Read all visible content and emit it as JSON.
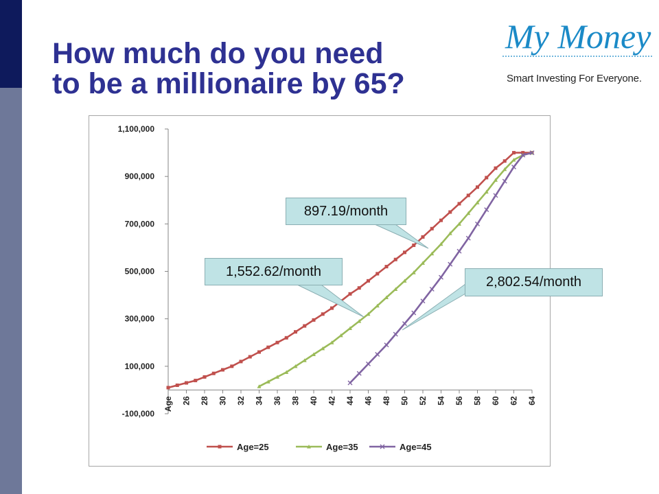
{
  "slide": {
    "title_line1": "How much do you need",
    "title_line2": "to be a millionaire by 65?",
    "logo_text": "My Money",
    "logo_tagline": "Smart Investing For Everyone."
  },
  "colors": {
    "title": "#2e3192",
    "sidebar_dark": "#0e1a5c",
    "sidebar_light": "#6e7899",
    "series_25": "#c0504d",
    "series_35": "#9bbb59",
    "series_45": "#8064a2",
    "callout_fill": "#bfe3e5"
  },
  "chart_data": {
    "type": "line",
    "title": "",
    "xlabel": "",
    "ylabel": "",
    "ylim": [
      -100000,
      1100000
    ],
    "y_ticks": [
      1100000,
      900000,
      700000,
      500000,
      300000,
      100000,
      -100000
    ],
    "y_tick_labels": [
      "1,100,000",
      "900,000",
      "700,000",
      "500,000",
      "300,000",
      "100,000",
      "-100,000"
    ],
    "x_tick_labels": [
      "Age",
      "26",
      "28",
      "30",
      "32",
      "34",
      "36",
      "38",
      "40",
      "42",
      "44",
      "46",
      "48",
      "50",
      "52",
      "54",
      "56",
      "58",
      "60",
      "62",
      "64"
    ],
    "x_range": [
      24,
      64
    ],
    "gridlines": false,
    "legend_position": "bottom",
    "series": [
      {
        "name": "Age=25",
        "marker": "square",
        "x": [
          24,
          25,
          26,
          27,
          28,
          29,
          30,
          31,
          32,
          33,
          34,
          35,
          36,
          37,
          38,
          39,
          40,
          41,
          42,
          43,
          44,
          45,
          46,
          47,
          48,
          49,
          50,
          51,
          52,
          53,
          54,
          55,
          56,
          57,
          58,
          59,
          60,
          61,
          62,
          63,
          64
        ],
        "values": [
          10000,
          20000,
          30000,
          40000,
          55000,
          70000,
          85000,
          100000,
          120000,
          140000,
          160000,
          180000,
          200000,
          220000,
          245000,
          270000,
          295000,
          320000,
          345000,
          375000,
          405000,
          430000,
          460000,
          490000,
          520000,
          550000,
          580000,
          610000,
          645000,
          680000,
          715000,
          750000,
          785000,
          820000,
          855000,
          895000,
          935000,
          965000,
          1000000,
          1000000,
          1000000
        ]
      },
      {
        "name": "Age=35",
        "marker": "triangle",
        "x": [
          34,
          35,
          36,
          37,
          38,
          39,
          40,
          41,
          42,
          43,
          44,
          45,
          46,
          47,
          48,
          49,
          50,
          51,
          52,
          53,
          54,
          55,
          56,
          57,
          58,
          59,
          60,
          61,
          62,
          63,
          64
        ],
        "values": [
          15000,
          35000,
          55000,
          75000,
          100000,
          125000,
          150000,
          175000,
          200000,
          230000,
          260000,
          290000,
          320000,
          355000,
          390000,
          425000,
          460000,
          495000,
          535000,
          575000,
          615000,
          660000,
          700000,
          745000,
          790000,
          835000,
          885000,
          930000,
          970000,
          990000,
          1000000
        ]
      },
      {
        "name": "Age=45",
        "marker": "x",
        "x": [
          44,
          45,
          46,
          47,
          48,
          49,
          50,
          51,
          52,
          53,
          54,
          55,
          56,
          57,
          58,
          59,
          60,
          61,
          62,
          63,
          64
        ],
        "values": [
          30000,
          70000,
          110000,
          150000,
          190000,
          235000,
          280000,
          325000,
          375000,
          425000,
          475000,
          530000,
          585000,
          640000,
          700000,
          760000,
          820000,
          880000,
          940000,
          990000,
          1000000
        ]
      }
    ],
    "annotations": [
      {
        "text": "897.19/month",
        "series": "Age=25"
      },
      {
        "text": "1,552.62/month",
        "series": "Age=35"
      },
      {
        "text": "2,802.54/month",
        "series": "Age=45"
      }
    ]
  }
}
